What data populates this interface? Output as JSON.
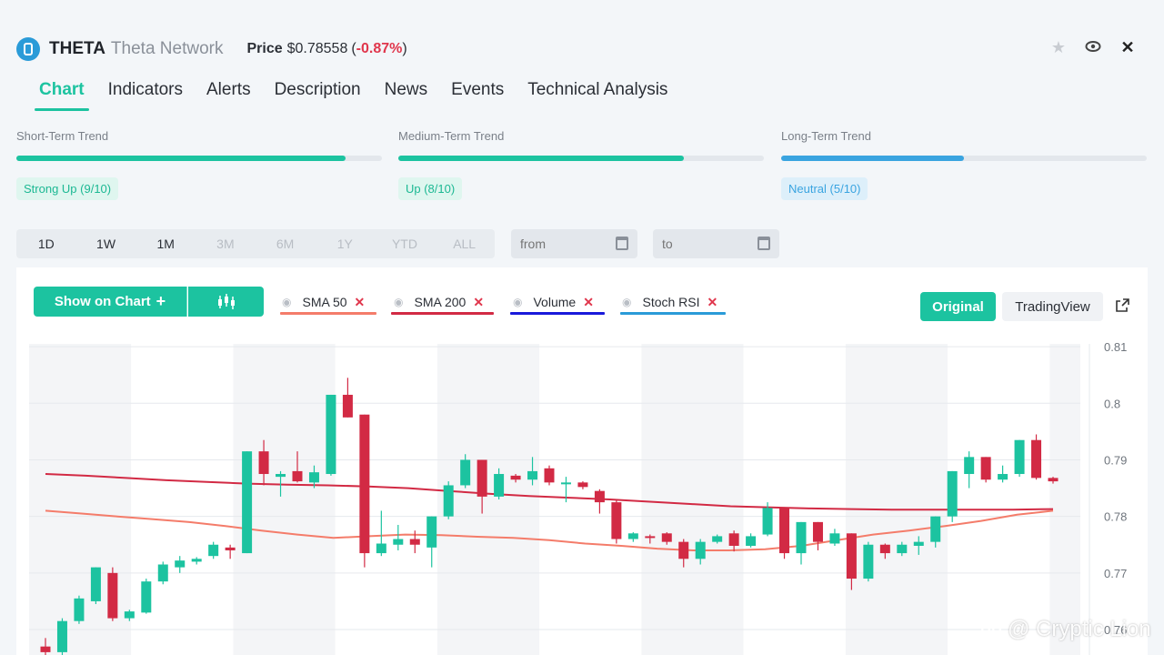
{
  "header": {
    "symbol": "THETA",
    "name": "Theta Network",
    "price_label": "Price",
    "price": "$0.78558",
    "change_open": "(",
    "change": "-0.87%",
    "change_close": ")"
  },
  "tabs": [
    {
      "label": "Chart",
      "active": true
    },
    {
      "label": "Indicators"
    },
    {
      "label": "Alerts"
    },
    {
      "label": "Description"
    },
    {
      "label": "News"
    },
    {
      "label": "Events"
    },
    {
      "label": "Technical Analysis"
    }
  ],
  "trends": [
    {
      "label": "Short-Term Trend",
      "badge": "Strong Up (9/10)",
      "score": 0.9,
      "color": "#1cc3a0"
    },
    {
      "label": "Medium-Term Trend",
      "badge": "Up (8/10)",
      "score": 0.78,
      "color": "#1cc3a0"
    },
    {
      "label": "Long-Term Trend",
      "badge": "Neutral (5/10)",
      "score": 0.5,
      "color": "#3aa4e0"
    }
  ],
  "periods": [
    {
      "label": "1D",
      "enabled": true
    },
    {
      "label": "1W",
      "enabled": true
    },
    {
      "label": "1M",
      "enabled": true
    },
    {
      "label": "3M",
      "enabled": false
    },
    {
      "label": "6M",
      "enabled": false
    },
    {
      "label": "1Y",
      "enabled": false
    },
    {
      "label": "YTD",
      "enabled": false
    },
    {
      "label": "ALL",
      "enabled": false
    }
  ],
  "date_range": {
    "from_placeholder": "from",
    "to_placeholder": "to"
  },
  "toolbar": {
    "show_on_chart": "Show on Chart",
    "plus": "+"
  },
  "indicators": [
    {
      "label": "SMA 50",
      "color": "#f47c6a"
    },
    {
      "label": "SMA 200",
      "color": "#d22a44"
    },
    {
      "label": "Volume",
      "color": "#1a1adb"
    },
    {
      "label": "Stoch RSI",
      "color": "#2a9bd8"
    }
  ],
  "modes": {
    "original": "Original",
    "tradingview": "TradingView"
  },
  "watermark": "@ Cryptic Lion",
  "chart_data": {
    "type": "candlestick",
    "yaxis_ticks": [
      "0.81",
      "0.8",
      "0.79",
      "0.78",
      "0.77",
      "0.76"
    ],
    "ylim": [
      0.7555,
      0.8105
    ],
    "up_color": "#1cc3a0",
    "down_color": "#d22a44",
    "candles": [
      {
        "o": 0.757,
        "h": 0.7585,
        "l": 0.7555,
        "c": 0.756
      },
      {
        "o": 0.756,
        "h": 0.762,
        "l": 0.7555,
        "c": 0.7615
      },
      {
        "o": 0.7615,
        "h": 0.766,
        "l": 0.761,
        "c": 0.7655
      },
      {
        "o": 0.765,
        "h": 0.771,
        "l": 0.7645,
        "c": 0.771
      },
      {
        "o": 0.77,
        "h": 0.771,
        "l": 0.7615,
        "c": 0.762
      },
      {
        "o": 0.762,
        "h": 0.7635,
        "l": 0.7615,
        "c": 0.7632
      },
      {
        "o": 0.763,
        "h": 0.769,
        "l": 0.7628,
        "c": 0.7685
      },
      {
        "o": 0.7685,
        "h": 0.772,
        "l": 0.768,
        "c": 0.7715
      },
      {
        "o": 0.771,
        "h": 0.773,
        "l": 0.77,
        "c": 0.7722
      },
      {
        "o": 0.772,
        "h": 0.7728,
        "l": 0.7715,
        "c": 0.7725
      },
      {
        "o": 0.773,
        "h": 0.7755,
        "l": 0.7725,
        "c": 0.775
      },
      {
        "o": 0.7745,
        "h": 0.775,
        "l": 0.7725,
        "c": 0.774
      },
      {
        "o": 0.7735,
        "h": 0.7915,
        "l": 0.7735,
        "c": 0.7915
      },
      {
        "o": 0.7915,
        "h": 0.7935,
        "l": 0.7855,
        "c": 0.7875
      },
      {
        "o": 0.787,
        "h": 0.788,
        "l": 0.7835,
        "c": 0.7875
      },
      {
        "o": 0.788,
        "h": 0.7915,
        "l": 0.786,
        "c": 0.7862
      },
      {
        "o": 0.786,
        "h": 0.789,
        "l": 0.785,
        "c": 0.7878
      },
      {
        "o": 0.7875,
        "h": 0.8015,
        "l": 0.7872,
        "c": 0.8015
      },
      {
        "o": 0.8015,
        "h": 0.8045,
        "l": 0.7975,
        "c": 0.7975
      },
      {
        "o": 0.798,
        "h": 0.798,
        "l": 0.771,
        "c": 0.7735
      },
      {
        "o": 0.7735,
        "h": 0.781,
        "l": 0.773,
        "c": 0.7752
      },
      {
        "o": 0.775,
        "h": 0.7785,
        "l": 0.774,
        "c": 0.776
      },
      {
        "o": 0.776,
        "h": 0.7775,
        "l": 0.7735,
        "c": 0.775
      },
      {
        "o": 0.7745,
        "h": 0.78,
        "l": 0.771,
        "c": 0.78
      },
      {
        "o": 0.78,
        "h": 0.7862,
        "l": 0.7795,
        "c": 0.7855
      },
      {
        "o": 0.7855,
        "h": 0.791,
        "l": 0.785,
        "c": 0.79
      },
      {
        "o": 0.79,
        "h": 0.79,
        "l": 0.7805,
        "c": 0.7835
      },
      {
        "o": 0.7835,
        "h": 0.7885,
        "l": 0.783,
        "c": 0.7875
      },
      {
        "o": 0.7872,
        "h": 0.7875,
        "l": 0.786,
        "c": 0.7865
      },
      {
        "o": 0.7865,
        "h": 0.7905,
        "l": 0.7855,
        "c": 0.788
      },
      {
        "o": 0.7885,
        "h": 0.789,
        "l": 0.7855,
        "c": 0.786
      },
      {
        "o": 0.786,
        "h": 0.787,
        "l": 0.7825,
        "c": 0.786
      },
      {
        "o": 0.786,
        "h": 0.7862,
        "l": 0.7848,
        "c": 0.7852
      },
      {
        "o": 0.7845,
        "h": 0.7848,
        "l": 0.7805,
        "c": 0.7825
      },
      {
        "o": 0.7825,
        "h": 0.783,
        "l": 0.7752,
        "c": 0.776
      },
      {
        "o": 0.776,
        "h": 0.7772,
        "l": 0.7755,
        "c": 0.777
      },
      {
        "o": 0.7765,
        "h": 0.7768,
        "l": 0.7752,
        "c": 0.7762
      },
      {
        "o": 0.777,
        "h": 0.7772,
        "l": 0.775,
        "c": 0.7755
      },
      {
        "o": 0.7755,
        "h": 0.776,
        "l": 0.771,
        "c": 0.7725
      },
      {
        "o": 0.7725,
        "h": 0.776,
        "l": 0.7715,
        "c": 0.7755
      },
      {
        "o": 0.7755,
        "h": 0.7768,
        "l": 0.7752,
        "c": 0.7765
      },
      {
        "o": 0.777,
        "h": 0.7775,
        "l": 0.7738,
        "c": 0.7748
      },
      {
        "o": 0.7748,
        "h": 0.777,
        "l": 0.7745,
        "c": 0.7765
      },
      {
        "o": 0.7768,
        "h": 0.7825,
        "l": 0.7765,
        "c": 0.7815
      },
      {
        "o": 0.7815,
        "h": 0.7815,
        "l": 0.7725,
        "c": 0.7735
      },
      {
        "o": 0.7735,
        "h": 0.779,
        "l": 0.7715,
        "c": 0.779
      },
      {
        "o": 0.779,
        "h": 0.779,
        "l": 0.774,
        "c": 0.7755
      },
      {
        "o": 0.7752,
        "h": 0.7778,
        "l": 0.7748,
        "c": 0.777
      },
      {
        "o": 0.777,
        "h": 0.777,
        "l": 0.767,
        "c": 0.769
      },
      {
        "o": 0.769,
        "h": 0.7755,
        "l": 0.7685,
        "c": 0.775
      },
      {
        "o": 0.775,
        "h": 0.7752,
        "l": 0.7725,
        "c": 0.7735
      },
      {
        "o": 0.7735,
        "h": 0.7755,
        "l": 0.773,
        "c": 0.775
      },
      {
        "o": 0.7748,
        "h": 0.7765,
        "l": 0.7732,
        "c": 0.7755
      },
      {
        "o": 0.7755,
        "h": 0.78,
        "l": 0.7745,
        "c": 0.78
      },
      {
        "o": 0.78,
        "h": 0.788,
        "l": 0.779,
        "c": 0.788
      },
      {
        "o": 0.7875,
        "h": 0.7915,
        "l": 0.785,
        "c": 0.7905
      },
      {
        "o": 0.7905,
        "h": 0.7905,
        "l": 0.786,
        "c": 0.7865
      },
      {
        "o": 0.7865,
        "h": 0.789,
        "l": 0.786,
        "c": 0.7875
      },
      {
        "o": 0.7875,
        "h": 0.7935,
        "l": 0.787,
        "c": 0.7935
      },
      {
        "o": 0.7935,
        "h": 0.7945,
        "l": 0.7865,
        "c": 0.7868
      },
      {
        "o": 0.7868,
        "h": 0.787,
        "l": 0.7858,
        "c": 0.7862
      }
    ],
    "sma50": [
      0.781,
      0.7805,
      0.78,
      0.7795,
      0.779,
      0.7783,
      0.7775,
      0.7768,
      0.7762,
      0.7765,
      0.7768,
      0.7767,
      0.7764,
      0.7762,
      0.7758,
      0.7752,
      0.7748,
      0.7743,
      0.774,
      0.774,
      0.7742,
      0.7748,
      0.7758,
      0.7768,
      0.7775,
      0.7783,
      0.7792,
      0.7803,
      0.781
    ],
    "sma200": [
      0.7875,
      0.7872,
      0.7868,
      0.7864,
      0.7861,
      0.7858,
      0.7856,
      0.7855,
      0.7853,
      0.785,
      0.7845,
      0.784,
      0.7836,
      0.7833,
      0.783,
      0.7826,
      0.7822,
      0.7818,
      0.7816,
      0.7814,
      0.7813,
      0.7812,
      0.7812,
      0.7812,
      0.7812,
      0.7813
    ]
  }
}
